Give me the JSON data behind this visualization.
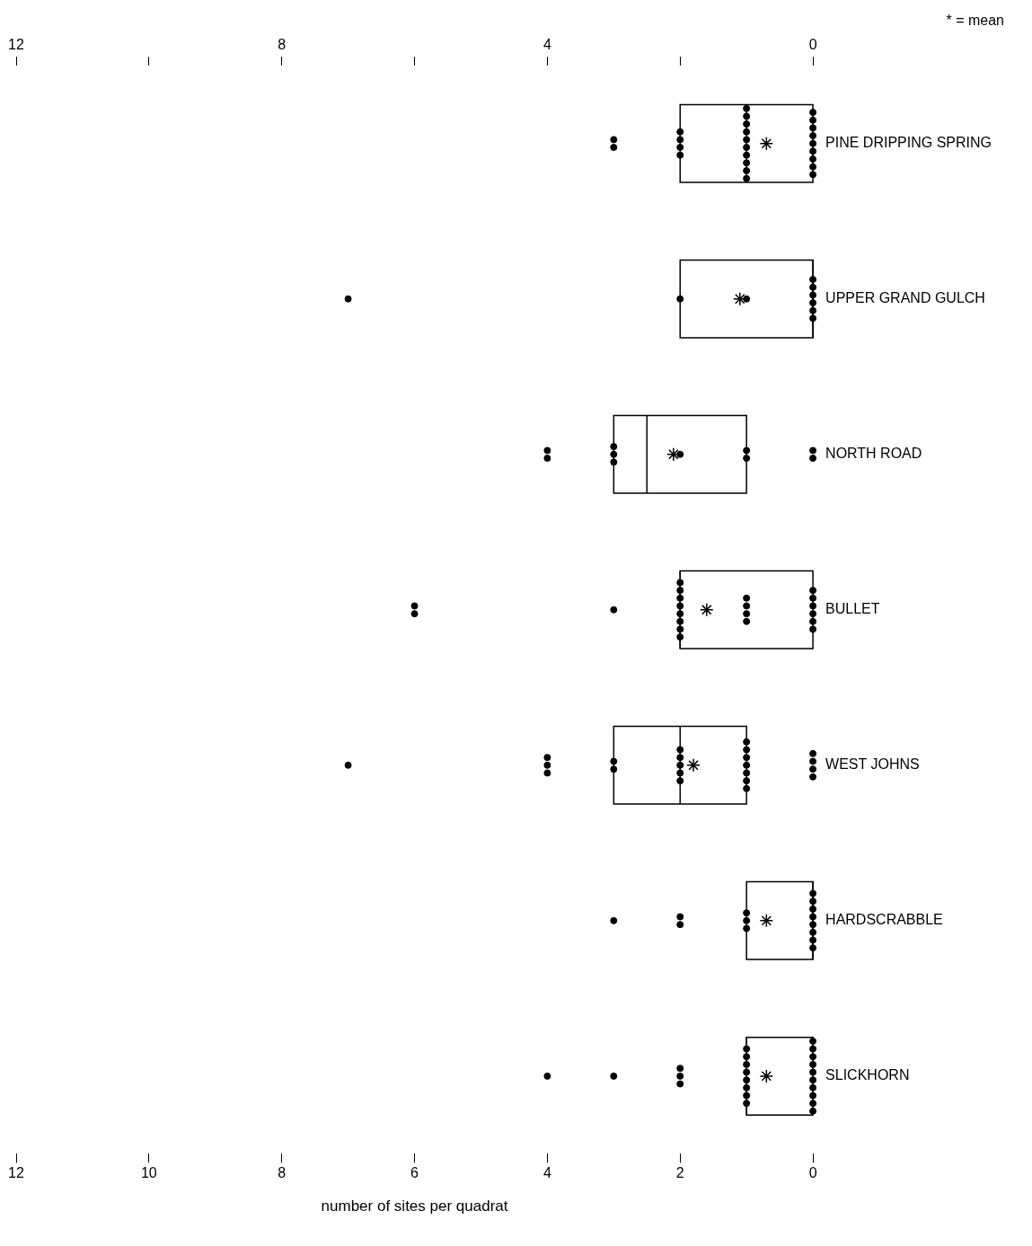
{
  "chart_data": {
    "type": "box",
    "orientation": "horizontal",
    "color": "#000000",
    "xlabel": "number of sites per quadrat",
    "annotations": [
      "* = mean"
    ],
    "grid": false,
    "categories": [
      "PINE DRIPPING SPRING",
      "UPPER GRAND GULCH",
      "NORTH ROAD",
      "BULLET",
      "WEST JOHNS",
      "HARDSCRABBLE",
      "SLICKHORN"
    ],
    "boxes": [
      {
        "low": 0,
        "q1": 0,
        "median": 1,
        "q3": 2,
        "high": 2,
        "mean": 0.7
      },
      {
        "low": 0,
        "q1": 0,
        "median": 0,
        "q3": 2,
        "high": 2,
        "mean": 1.1
      },
      {
        "low": 1,
        "q1": 1,
        "median": 2.5,
        "q3": 3,
        "high": 3,
        "mean": 2.1
      },
      {
        "low": 0,
        "q1": 0,
        "median": 2,
        "q3": 2,
        "high": 2,
        "mean": 1.6
      },
      {
        "low": 1,
        "q1": 1,
        "median": 2,
        "q3": 3,
        "high": 3,
        "mean": 1.8
      },
      {
        "low": 0,
        "q1": 0,
        "median": 0,
        "q3": 1,
        "high": 1,
        "mean": 0.7
      },
      {
        "low": 0,
        "q1": 0,
        "median": 1,
        "q3": 1,
        "high": 1,
        "mean": 0.7
      }
    ],
    "series": [
      {
        "type": "scatter",
        "color": "#000000",
        "marker": "circle",
        "x": [
          "PINE DRIPPING SPRING",
          "PINE DRIPPING SPRING",
          "PINE DRIPPING SPRING",
          "PINE DRIPPING SPRING",
          "PINE DRIPPING SPRING",
          "PINE DRIPPING SPRING",
          "PINE DRIPPING SPRING",
          "PINE DRIPPING SPRING",
          "PINE DRIPPING SPRING",
          "PINE DRIPPING SPRING",
          "PINE DRIPPING SPRING",
          "PINE DRIPPING SPRING",
          "PINE DRIPPING SPRING",
          "PINE DRIPPING SPRING",
          "PINE DRIPPING SPRING",
          "PINE DRIPPING SPRING",
          "PINE DRIPPING SPRING",
          "PINE DRIPPING SPRING",
          "PINE DRIPPING SPRING",
          "PINE DRIPPING SPRING",
          "PINE DRIPPING SPRING",
          "PINE DRIPPING SPRING",
          "PINE DRIPPING SPRING",
          "PINE DRIPPING SPRING",
          "PINE DRIPPING SPRING",
          "UPPER GRAND GULCH",
          "UPPER GRAND GULCH",
          "UPPER GRAND GULCH",
          "UPPER GRAND GULCH",
          "UPPER GRAND GULCH",
          "UPPER GRAND GULCH",
          "UPPER GRAND GULCH",
          "UPPER GRAND GULCH",
          "UPPER GRAND GULCH",
          "NORTH ROAD",
          "NORTH ROAD",
          "NORTH ROAD",
          "NORTH ROAD",
          "NORTH ROAD",
          "NORTH ROAD",
          "NORTH ROAD",
          "NORTH ROAD",
          "NORTH ROAD",
          "NORTH ROAD",
          "BULLET",
          "BULLET",
          "BULLET",
          "BULLET",
          "BULLET",
          "BULLET",
          "BULLET",
          "BULLET",
          "BULLET",
          "BULLET",
          "BULLET",
          "BULLET",
          "BULLET",
          "BULLET",
          "BULLET",
          "BULLET",
          "BULLET",
          "BULLET",
          "BULLET",
          "BULLET",
          "BULLET",
          "WEST JOHNS",
          "WEST JOHNS",
          "WEST JOHNS",
          "WEST JOHNS",
          "WEST JOHNS",
          "WEST JOHNS",
          "WEST JOHNS",
          "WEST JOHNS",
          "WEST JOHNS",
          "WEST JOHNS",
          "WEST JOHNS",
          "WEST JOHNS",
          "WEST JOHNS",
          "WEST JOHNS",
          "WEST JOHNS",
          "WEST JOHNS",
          "WEST JOHNS",
          "WEST JOHNS",
          "WEST JOHNS",
          "WEST JOHNS",
          "WEST JOHNS",
          "WEST JOHNS",
          "HARDSCRABBLE",
          "HARDSCRABBLE",
          "HARDSCRABBLE",
          "HARDSCRABBLE",
          "HARDSCRABBLE",
          "HARDSCRABBLE",
          "HARDSCRABBLE",
          "HARDSCRABBLE",
          "HARDSCRABBLE",
          "HARDSCRABBLE",
          "HARDSCRABBLE",
          "HARDSCRABBLE",
          "HARDSCRABBLE",
          "HARDSCRABBLE",
          "SLICKHORN",
          "SLICKHORN",
          "SLICKHORN",
          "SLICKHORN",
          "SLICKHORN",
          "SLICKHORN",
          "SLICKHORN",
          "SLICKHORN",
          "SLICKHORN",
          "SLICKHORN",
          "SLICKHORN",
          "SLICKHORN",
          "SLICKHORN",
          "SLICKHORN",
          "SLICKHORN",
          "SLICKHORN",
          "SLICKHORN",
          "SLICKHORN",
          "SLICKHORN",
          "SLICKHORN",
          "SLICKHORN",
          "SLICKHORN",
          "SLICKHORN"
        ],
        "values": [
          0,
          0,
          0,
          0,
          0,
          0,
          0,
          0,
          0,
          1,
          1,
          1,
          1,
          1,
          1,
          1,
          1,
          1,
          1,
          2,
          2,
          2,
          2,
          3,
          3,
          0,
          0,
          0,
          0,
          0,
          0,
          1,
          2,
          7,
          0,
          0,
          1,
          1,
          2,
          3,
          3,
          3,
          4,
          4,
          0,
          0,
          0,
          0,
          0,
          0,
          1,
          1,
          1,
          1,
          2,
          2,
          2,
          2,
          2,
          2,
          2,
          2,
          3,
          6,
          6,
          0,
          0,
          0,
          0,
          1,
          1,
          1,
          1,
          1,
          1,
          1,
          2,
          2,
          2,
          2,
          2,
          3,
          3,
          4,
          4,
          4,
          7,
          0,
          0,
          0,
          0,
          0,
          0,
          0,
          0,
          1,
          1,
          1,
          2,
          2,
          3,
          0,
          0,
          0,
          0,
          0,
          0,
          0,
          0,
          0,
          0,
          1,
          1,
          1,
          1,
          1,
          1,
          1,
          1,
          2,
          2,
          2,
          3,
          4
        ]
      }
    ],
    "xlim": [
      12,
      0
    ],
    "xticks": [
      0,
      2,
      4,
      6,
      8,
      10,
      12
    ],
    "x2lim": [
      12,
      0
    ],
    "x2ticks": [
      0,
      {
        "value": 2,
        "label": null
      },
      4,
      {
        "value": 6,
        "label": null
      },
      8,
      {
        "value": 10,
        "label": null
      },
      12
    ]
  }
}
